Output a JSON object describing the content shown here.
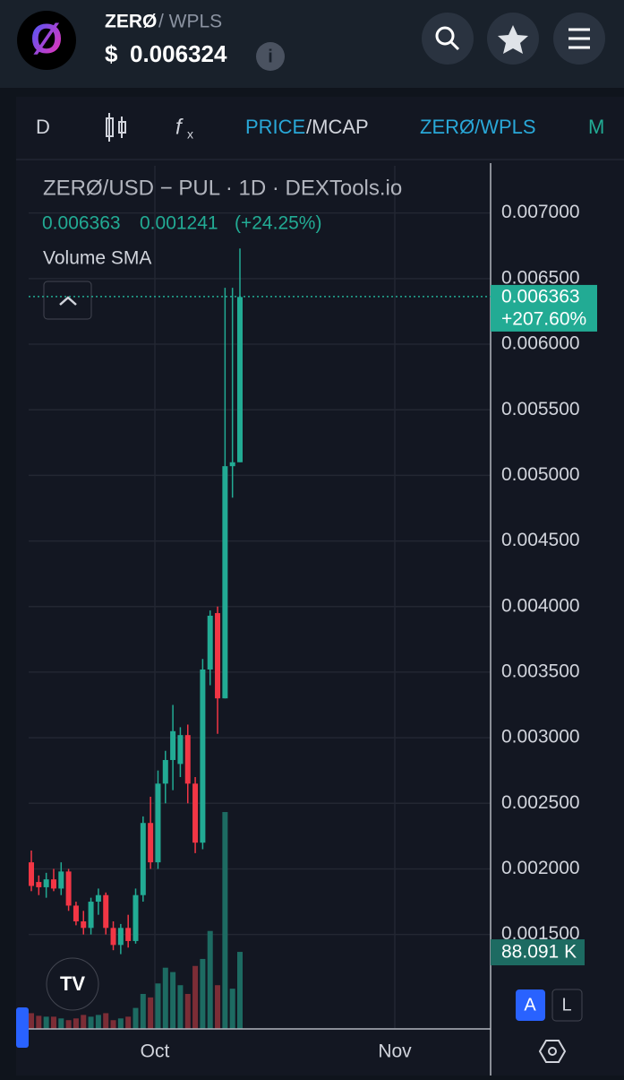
{
  "header": {
    "token": "ZERØ",
    "pair": "/ WPLS",
    "currency": "$",
    "price": "0.006324"
  },
  "toolbar": {
    "interval": "D",
    "price": "PRICE",
    "mcap": "/MCAP",
    "pair": "ZERØ/WPLS",
    "more": "M"
  },
  "chart_data": {
    "type": "candlestick",
    "title": "ZERØ/USD − PUL · 1D · DEXTools.io",
    "legend_values": [
      "0.006363",
      "0.001241",
      "(+24.25%)"
    ],
    "indicator": "Volume SMA",
    "open": [
      0.00205,
      0.0019,
      0.00186,
      0.00192,
      0.00185,
      0.00198,
      0.00172,
      0.0016,
      0.00155,
      0.00175,
      0.0018,
      0.00155,
      0.00142,
      0.00155,
      0.00145,
      0.0018,
      0.00235,
      0.00205,
      0.00265,
      0.00283,
      0.0028,
      0.00302,
      0.00265,
      0.0022,
      0.00352,
      0.00395,
      0.0033,
      0.00507,
      0.0051
    ],
    "high": [
      0.00214,
      0.00195,
      0.00197,
      0.002,
      0.00205,
      0.002,
      0.00175,
      0.00168,
      0.00178,
      0.00185,
      0.00182,
      0.0016,
      0.00158,
      0.00165,
      0.00185,
      0.0024,
      0.00255,
      0.00275,
      0.0029,
      0.00325,
      0.00308,
      0.0031,
      0.0027,
      0.0036,
      0.00397,
      0.004,
      0.00643,
      0.00643,
      0.00673
    ],
    "low": [
      0.00183,
      0.0018,
      0.00178,
      0.00183,
      0.0018,
      0.00168,
      0.00157,
      0.0015,
      0.0015,
      0.00165,
      0.0015,
      0.00138,
      0.00135,
      0.0014,
      0.00143,
      0.00175,
      0.002,
      0.002,
      0.0025,
      0.0026,
      0.0027,
      0.0025,
      0.00212,
      0.00215,
      0.0034,
      0.00303,
      0.0033,
      0.00483,
      0.0051
    ],
    "close": [
      0.00187,
      0.00186,
      0.00192,
      0.00185,
      0.00198,
      0.00172,
      0.0016,
      0.00155,
      0.00175,
      0.0018,
      0.00155,
      0.00142,
      0.00155,
      0.00145,
      0.0018,
      0.00235,
      0.00205,
      0.00265,
      0.00283,
      0.00305,
      0.00302,
      0.00265,
      0.0022,
      0.00352,
      0.00393,
      0.0033,
      0.00507,
      0.0051,
      0.00636
    ],
    "volume": [
      18,
      15,
      14,
      14,
      12,
      10,
      12,
      16,
      14,
      16,
      18,
      10,
      12,
      14,
      24,
      40,
      36,
      52,
      70,
      65,
      50,
      40,
      72,
      80,
      112,
      50,
      248,
      46,
      88.091
    ],
    "volume_label": "88.091 K",
    "volume_ylim": [
      0,
      987
    ],
    "up_color": "#22ab94",
    "down_color": "#f23645",
    "up_volume_color": "#1d6b62",
    "down_volume_color": "#7c2d36",
    "last_price": {
      "value": 0.006363,
      "label": "0.006363"
    },
    "last_change": "+207.60%",
    "ylim": [
      0.00078,
      0.00736
    ],
    "yticks": [
      {
        "value": 0.0015,
        "label": "0.001500"
      },
      {
        "value": 0.002,
        "label": "0.002000"
      },
      {
        "value": 0.0025,
        "label": "0.002500"
      },
      {
        "value": 0.003,
        "label": "0.003000"
      },
      {
        "value": 0.0035,
        "label": "0.003500"
      },
      {
        "value": 0.004,
        "label": "0.004000"
      },
      {
        "value": 0.0045,
        "label": "0.004500"
      },
      {
        "value": 0.005,
        "label": "0.005000"
      },
      {
        "value": 0.0055,
        "label": "0.005500"
      },
      {
        "value": 0.006,
        "label": "0.006000"
      },
      {
        "value": 0.0065,
        "label": "0.006500"
      },
      {
        "value": 0.007,
        "label": "0.007000"
      }
    ],
    "xticks": [
      "Oct",
      "Nov"
    ],
    "grid": true
  },
  "scale_buttons": [
    "A",
    "L"
  ]
}
